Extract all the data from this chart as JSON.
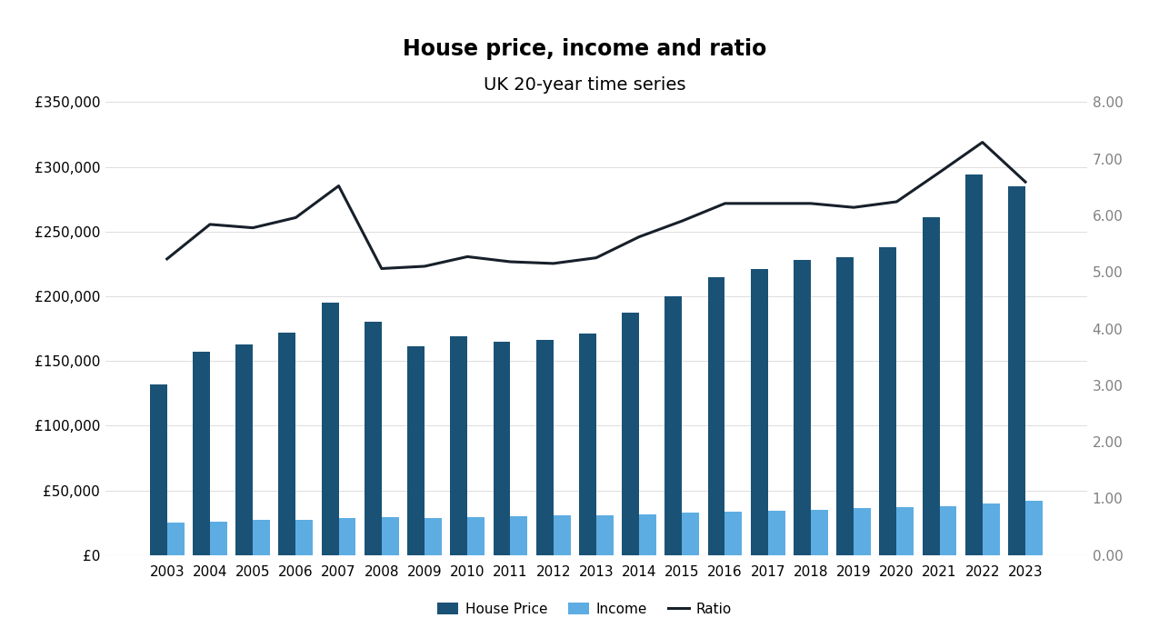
{
  "years": [
    2003,
    2004,
    2005,
    2006,
    2007,
    2008,
    2009,
    2010,
    2011,
    2012,
    2013,
    2014,
    2015,
    2016,
    2017,
    2018,
    2019,
    2020,
    2021,
    2022,
    2023
  ],
  "house_prices": [
    132000,
    157000,
    163000,
    172000,
    195000,
    180000,
    161000,
    169000,
    165000,
    166000,
    171000,
    187000,
    200000,
    215000,
    221000,
    228000,
    230000,
    238000,
    261000,
    294000,
    285000
  ],
  "incomes": [
    25000,
    26000,
    27000,
    27500,
    28500,
    29000,
    28500,
    29500,
    30000,
    30500,
    31000,
    31500,
    33000,
    33500,
    34000,
    35000,
    36000,
    37000,
    38000,
    40000,
    42000
  ],
  "ratio": [
    5.23,
    5.84,
    5.78,
    5.96,
    6.52,
    5.06,
    5.1,
    5.27,
    5.18,
    5.15,
    5.25,
    5.62,
    5.9,
    6.21,
    6.21,
    6.21,
    6.14,
    6.24,
    6.76,
    7.29,
    6.59
  ],
  "title": "House price, income and ratio",
  "subtitle": "UK 20-year time series",
  "legend_labels": [
    "House Price",
    "Income",
    "Ratio"
  ],
  "bar_color_dark": "#1a5276",
  "bar_color_light": "#5dade2",
  "line_color": "#17202a",
  "ylim_left": [
    0,
    350000
  ],
  "ylim_right": [
    0,
    8.0
  ],
  "yticks_left": [
    0,
    50000,
    100000,
    150000,
    200000,
    250000,
    300000,
    350000
  ],
  "yticks_right": [
    0.0,
    1.0,
    2.0,
    3.0,
    4.0,
    5.0,
    6.0,
    7.0,
    8.0
  ],
  "background_color": "#ffffff",
  "title_fontsize": 17,
  "subtitle_fontsize": 14,
  "tick_label_color": "#808080",
  "left_tick_color": "#000000",
  "bar_width": 0.4,
  "line_width": 2.2
}
